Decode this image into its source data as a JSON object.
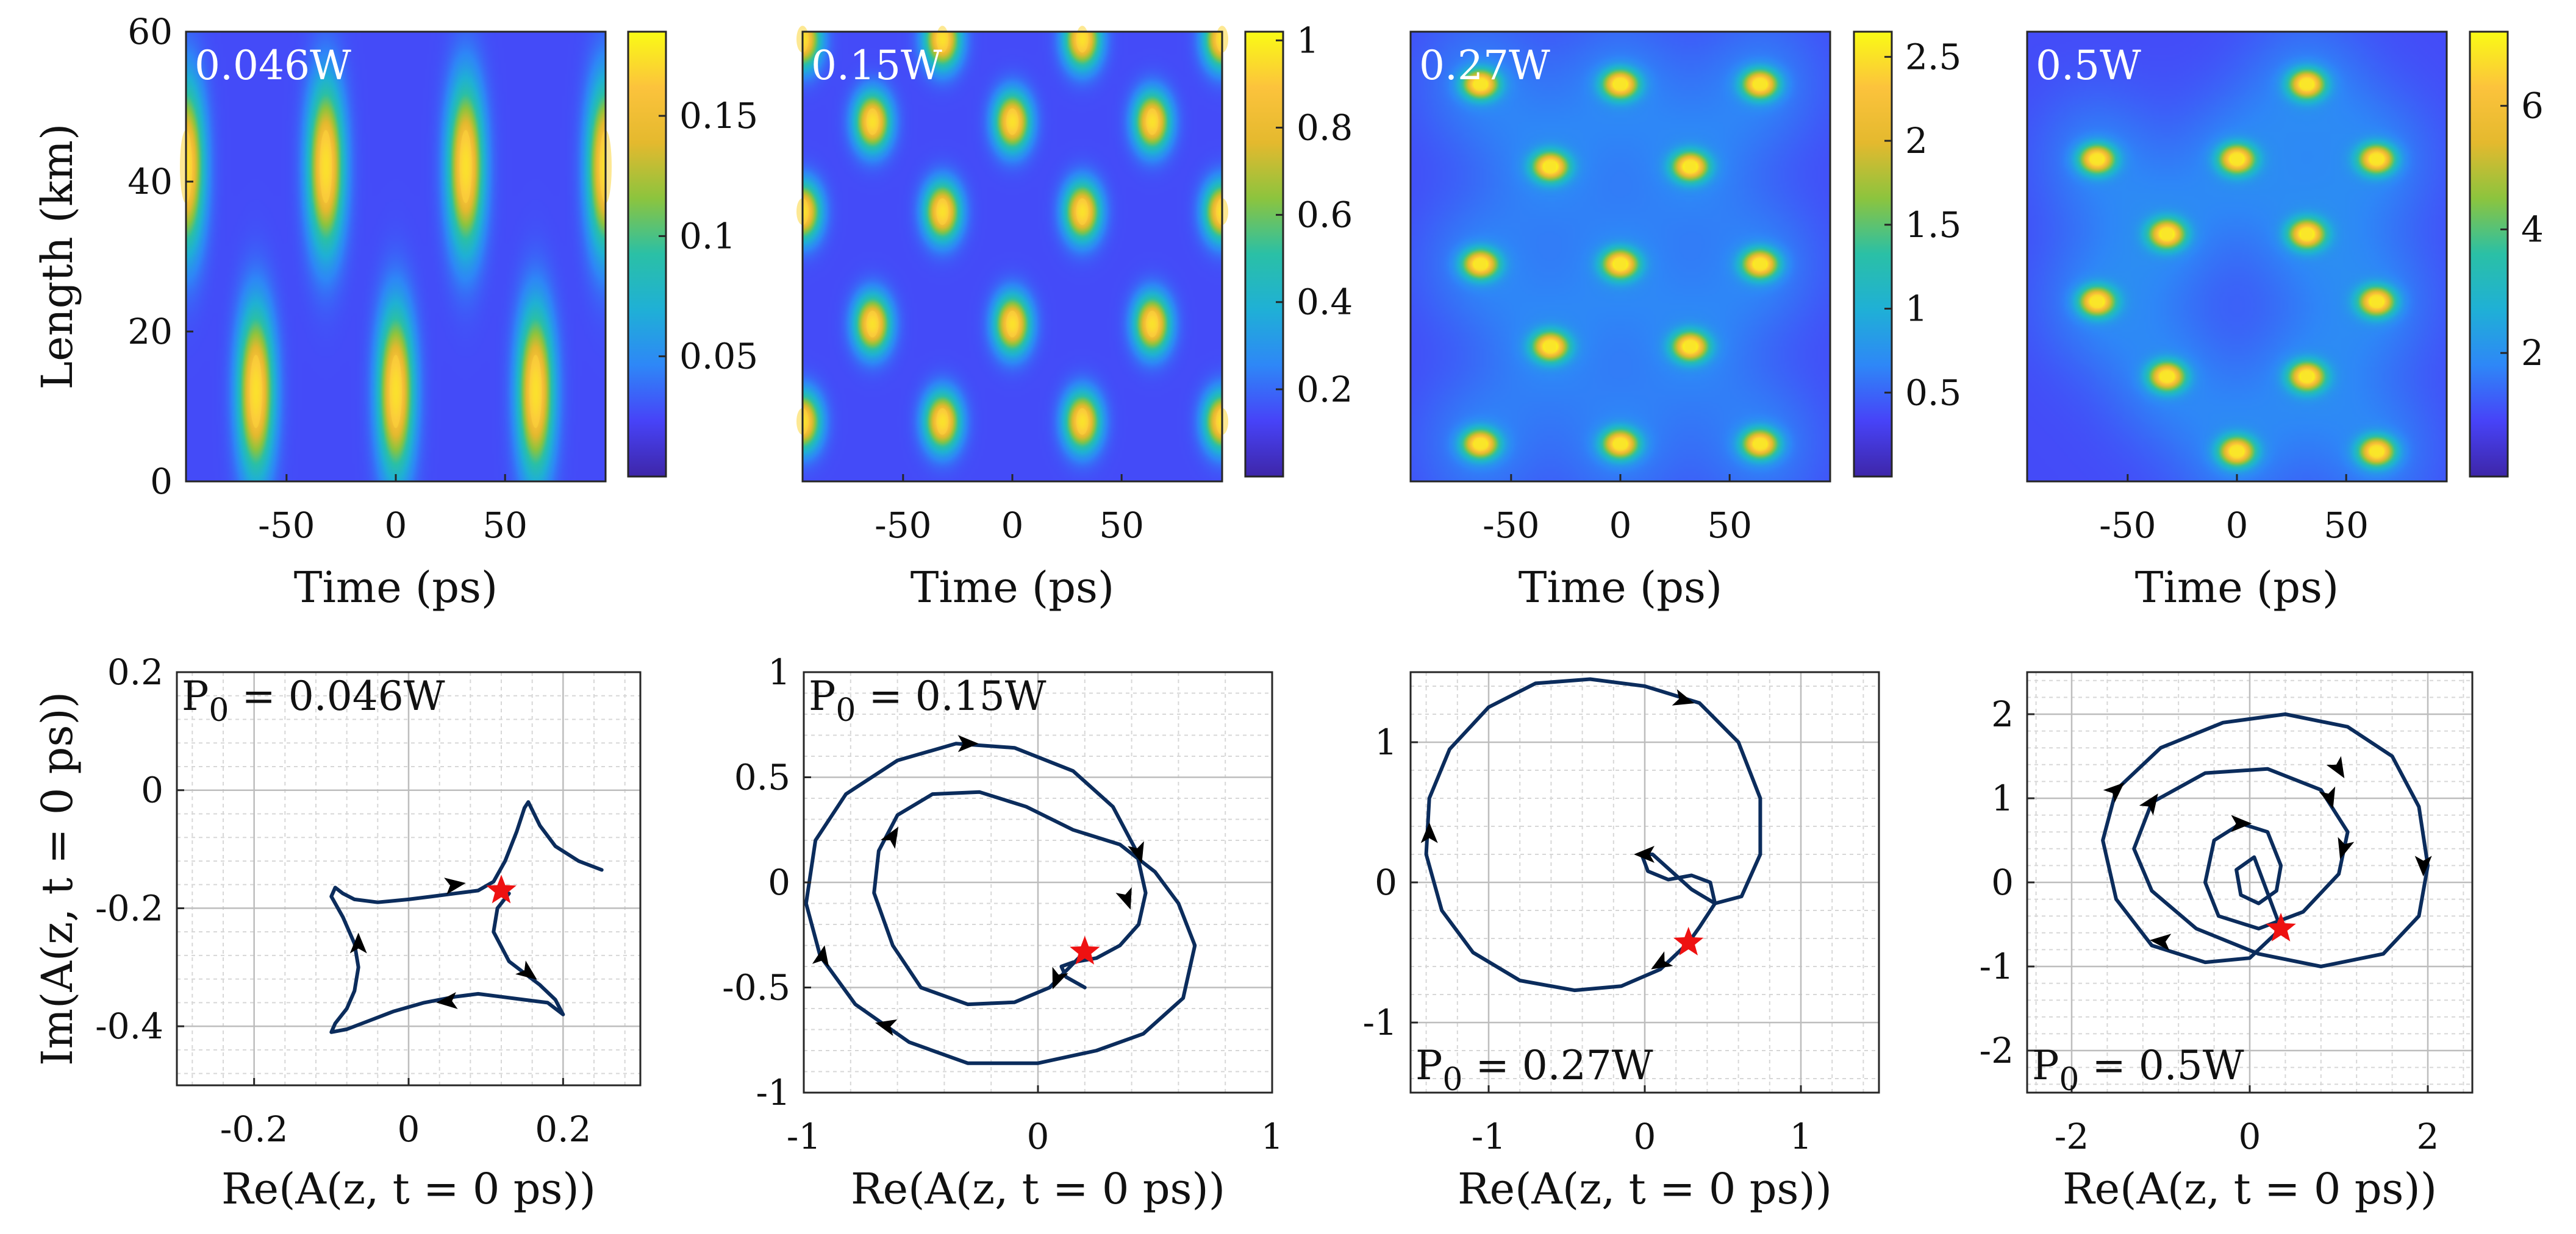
{
  "colormap": [
    "#3e26a8",
    "#4743f8",
    "#2e87f7",
    "#1fb0d6",
    "#2ac0a6",
    "#8cc43e",
    "#e4b92e",
    "#fcc33c",
    "#f9fb15"
  ],
  "trajectory_color": "#0b2c5c",
  "star_color": "#ee1111",
  "chart_data": [
    {
      "type": "heatmap",
      "id": "hm1",
      "label": "0.046W",
      "xlabel": "Time (ps)",
      "ylabel": "Length (km)",
      "xlim": [
        -96,
        96
      ],
      "ylim": [
        0,
        60
      ],
      "xticks": [
        -50,
        0,
        50
      ],
      "xtick_labels": [
        "-50",
        "0",
        "50"
      ],
      "yticks": [
        0,
        20,
        40,
        60
      ],
      "ytick_labels": [
        "0",
        "20",
        "40",
        "60"
      ],
      "colorbar_ticks": [
        0.05,
        0.1,
        0.15
      ],
      "colorbar_tick_labels": [
        "0.05",
        "0.1",
        "0.15"
      ],
      "clim": [
        0,
        0.185
      ],
      "peaks": [
        {
          "t": -96,
          "z": 42,
          "value": 0.18
        },
        {
          "t": -32,
          "z": 42,
          "value": 0.18
        },
        {
          "t": 32,
          "z": 42,
          "value": 0.18
        },
        {
          "t": 96,
          "z": 42,
          "value": 0.18
        },
        {
          "t": -64,
          "z": 12,
          "value": 0.18
        },
        {
          "t": 0,
          "z": 12,
          "value": 0.18
        },
        {
          "t": 64,
          "z": 12,
          "value": 0.18
        }
      ]
    },
    {
      "type": "heatmap",
      "id": "hm2",
      "label": "0.15W",
      "xlabel": "Time (ps)",
      "ylabel": "",
      "xlim": [
        -96,
        96
      ],
      "ylim": [
        0,
        60
      ],
      "xticks": [
        -50,
        0,
        50
      ],
      "xtick_labels": [
        "-50",
        "0",
        "50"
      ],
      "colorbar_ticks": [
        0.2,
        0.4,
        0.6,
        0.8,
        1
      ],
      "colorbar_tick_labels": [
        "0.2",
        "0.4",
        "0.6",
        "0.8",
        "1"
      ],
      "clim": [
        0,
        1.02
      ],
      "peaks": [
        {
          "t": -96,
          "z": 59,
          "value": 1.0
        },
        {
          "t": -32,
          "z": 59,
          "value": 1.0
        },
        {
          "t": 32,
          "z": 59,
          "value": 1.0
        },
        {
          "t": 96,
          "z": 59,
          "value": 1.0
        },
        {
          "t": -64,
          "z": 48,
          "value": 1.0
        },
        {
          "t": 0,
          "z": 48,
          "value": 1.0
        },
        {
          "t": 64,
          "z": 48,
          "value": 1.0
        },
        {
          "t": -96,
          "z": 36,
          "value": 1.0
        },
        {
          "t": -32,
          "z": 36,
          "value": 1.0
        },
        {
          "t": 32,
          "z": 36,
          "value": 1.0
        },
        {
          "t": 96,
          "z": 36,
          "value": 1.0
        },
        {
          "t": -64,
          "z": 21,
          "value": 1.0
        },
        {
          "t": 0,
          "z": 21,
          "value": 1.0
        },
        {
          "t": 64,
          "z": 21,
          "value": 1.0
        },
        {
          "t": -96,
          "z": 8,
          "value": 1.0
        },
        {
          "t": -32,
          "z": 8,
          "value": 1.0
        },
        {
          "t": 32,
          "z": 8,
          "value": 1.0
        },
        {
          "t": 96,
          "z": 8,
          "value": 1.0
        }
      ]
    },
    {
      "type": "heatmap",
      "id": "hm3",
      "label": "0.27W",
      "xlabel": "Time (ps)",
      "ylabel": "",
      "xlim": [
        -96,
        96
      ],
      "ylim": [
        0,
        60
      ],
      "xticks": [
        -50,
        0,
        50
      ],
      "xtick_labels": [
        "-50",
        "0",
        "50"
      ],
      "colorbar_ticks": [
        0.5,
        1,
        1.5,
        2,
        2.5
      ],
      "colorbar_tick_labels": [
        "0.5",
        "1",
        "1.5",
        "2",
        "2.5"
      ],
      "clim": [
        0,
        2.65
      ],
      "peaks": [
        {
          "t": -64,
          "z": 53,
          "value": 2.6
        },
        {
          "t": 0,
          "z": 53,
          "value": 2.6
        },
        {
          "t": 64,
          "z": 53,
          "value": 2.6
        },
        {
          "t": -32,
          "z": 42,
          "value": 2.6
        },
        {
          "t": 32,
          "z": 42,
          "value": 2.6
        },
        {
          "t": -64,
          "z": 29,
          "value": 2.6
        },
        {
          "t": 0,
          "z": 29,
          "value": 2.6
        },
        {
          "t": 64,
          "z": 29,
          "value": 2.6
        },
        {
          "t": -32,
          "z": 18,
          "value": 2.6
        },
        {
          "t": 32,
          "z": 18,
          "value": 2.6
        },
        {
          "t": -64,
          "z": 5,
          "value": 2.6
        },
        {
          "t": 0,
          "z": 5,
          "value": 2.6
        },
        {
          "t": 64,
          "z": 5,
          "value": 2.6
        }
      ]
    },
    {
      "type": "heatmap",
      "id": "hm4",
      "label": "0.5W",
      "xlabel": "Time (ps)",
      "ylabel": "",
      "xlim": [
        -96,
        96
      ],
      "ylim": [
        0,
        60
      ],
      "xticks": [
        -50,
        0,
        50
      ],
      "xtick_labels": [
        "-50",
        "0",
        "50"
      ],
      "colorbar_ticks": [
        2,
        4,
        6
      ],
      "colorbar_tick_labels": [
        "2",
        "4",
        "6"
      ],
      "clim": [
        0,
        7.2
      ],
      "peaks": [
        {
          "t": 32,
          "z": 53,
          "value": 7.0
        },
        {
          "t": -64,
          "z": 43,
          "value": 7.0
        },
        {
          "t": 0,
          "z": 43,
          "value": 7.0
        },
        {
          "t": 64,
          "z": 43,
          "value": 7.0
        },
        {
          "t": -32,
          "z": 33,
          "value": 7.0
        },
        {
          "t": 32,
          "z": 33,
          "value": 7.0
        },
        {
          "t": -64,
          "z": 24,
          "value": 7.0
        },
        {
          "t": 64,
          "z": 24,
          "value": 7.0
        },
        {
          "t": -32,
          "z": 14,
          "value": 7.0
        },
        {
          "t": 32,
          "z": 14,
          "value": 7.0
        },
        {
          "t": 0,
          "z": 4,
          "value": 7.0
        },
        {
          "t": 64,
          "z": 4,
          "value": 7.0
        }
      ]
    },
    {
      "type": "line",
      "id": "ph1",
      "label": "P_0 = 0.046W",
      "xlabel": "Re(A(z, t = 0 ps))",
      "ylabel": "Im(A(z, t = 0 ps))",
      "xlim": [
        -0.3,
        0.3
      ],
      "ylim": [
        -0.5,
        0.2
      ],
      "xticks": [
        -0.2,
        0,
        0.2
      ],
      "xtick_labels": [
        "-0.2",
        "0",
        "0.2"
      ],
      "yticks": [
        -0.4,
        -0.2,
        0,
        0.2
      ],
      "ytick_labels": [
        "-0.4",
        "-0.2",
        "0",
        "0.2"
      ],
      "label_position": "top-left",
      "x": [
        0.25,
        0.22,
        0.19,
        0.17,
        0.155,
        0.15,
        0.14,
        0.125,
        0.11,
        0.09,
        0.06,
        0.03,
        0.0,
        -0.04,
        -0.07,
        -0.085,
        -0.095,
        -0.1,
        -0.085,
        -0.07,
        -0.065,
        -0.07,
        -0.08,
        -0.095,
        -0.1,
        -0.08,
        -0.05,
        -0.02,
        0.02,
        0.06,
        0.09,
        0.12,
        0.15,
        0.18,
        0.2,
        0.19,
        0.17,
        0.15,
        0.13,
        0.11,
        0.115,
        0.13
      ],
      "y": [
        -0.135,
        -0.12,
        -0.095,
        -0.06,
        -0.02,
        -0.03,
        -0.07,
        -0.12,
        -0.155,
        -0.17,
        -0.175,
        -0.18,
        -0.185,
        -0.19,
        -0.185,
        -0.175,
        -0.165,
        -0.18,
        -0.215,
        -0.26,
        -0.3,
        -0.34,
        -0.37,
        -0.395,
        -0.41,
        -0.405,
        -0.39,
        -0.375,
        -0.36,
        -0.35,
        -0.345,
        -0.35,
        -0.355,
        -0.36,
        -0.38,
        -0.355,
        -0.33,
        -0.31,
        -0.29,
        -0.24,
        -0.2,
        -0.175
      ],
      "arrows": [
        {
          "x": 0.06,
          "y": -0.16,
          "dx": 1,
          "dy": 0.15
        },
        {
          "x": 0.155,
          "y": -0.31,
          "dx": 0.8,
          "dy": -0.6
        },
        {
          "x": 0.05,
          "y": -0.358,
          "dx": -1,
          "dy": -0.1
        },
        {
          "x": -0.065,
          "y": -0.26,
          "dx": 0,
          "dy": 1
        }
      ],
      "star": {
        "x": 0.12,
        "y": -0.17
      }
    },
    {
      "type": "line",
      "id": "ph2",
      "label": "P_0 = 0.15W",
      "xlabel": "Re(A(z, t = 0 ps))",
      "ylabel": "",
      "xlim": [
        -1,
        1
      ],
      "ylim": [
        -1,
        1
      ],
      "xticks": [
        -1,
        0,
        1
      ],
      "xtick_labels": [
        "-1",
        "0",
        "1"
      ],
      "yticks": [
        -1,
        -0.5,
        0,
        0.5,
        1
      ],
      "ytick_labels": [
        "-1",
        "-0.5",
        "0",
        "0.5",
        "1"
      ],
      "label_position": "top-left",
      "x": [
        0.2,
        0.05,
        -0.1,
        -0.3,
        -0.5,
        -0.62,
        -0.7,
        -0.68,
        -0.6,
        -0.45,
        -0.25,
        -0.05,
        0.15,
        0.35,
        0.5,
        0.6,
        0.67,
        0.62,
        0.45,
        0.25,
        0.0,
        -0.3,
        -0.55,
        -0.78,
        -0.93,
        -0.99,
        -0.95,
        -0.82,
        -0.6,
        -0.35,
        -0.1,
        0.15,
        0.32,
        0.42,
        0.46,
        0.43,
        0.35,
        0.25,
        0.15,
        0.1,
        0.12,
        0.2
      ],
      "y": [
        -0.33,
        -0.5,
        -0.57,
        -0.58,
        -0.5,
        -0.3,
        -0.05,
        0.15,
        0.32,
        0.42,
        0.43,
        0.36,
        0.25,
        0.18,
        0.05,
        -0.1,
        -0.3,
        -0.55,
        -0.72,
        -0.8,
        -0.86,
        -0.86,
        -0.76,
        -0.58,
        -0.35,
        -0.1,
        0.2,
        0.42,
        0.58,
        0.66,
        0.64,
        0.53,
        0.36,
        0.15,
        -0.05,
        -0.2,
        -0.3,
        -0.36,
        -0.38,
        -0.4,
        -0.45,
        -0.5
      ],
      "arrows": [
        {
          "x": -0.62,
          "y": 0.22,
          "dx": 0.6,
          "dy": 1
        },
        {
          "x": 0.38,
          "y": -0.08,
          "dx": 0.35,
          "dy": -1
        },
        {
          "x": -0.65,
          "y": -0.68,
          "dx": -1,
          "dy": 0.25
        },
        {
          "x": -0.92,
          "y": -0.35,
          "dx": 0.2,
          "dy": 1
        },
        {
          "x": -0.3,
          "y": 0.66,
          "dx": 1,
          "dy": 0
        },
        {
          "x": 0.43,
          "y": 0.14,
          "dx": 0.3,
          "dy": -1
        },
        {
          "x": 0.08,
          "y": -0.46,
          "dx": -0.4,
          "dy": -1
        }
      ],
      "star": {
        "x": 0.2,
        "y": -0.33
      }
    },
    {
      "type": "line",
      "id": "ph3",
      "label": "P_0 = 0.27W",
      "xlabel": "Re(A(z, t = 0 ps))",
      "ylabel": "",
      "xlim": [
        -1.5,
        1.5
      ],
      "ylim": [
        -1.5,
        1.5
      ],
      "xticks": [
        -1,
        0,
        1
      ],
      "xtick_labels": [
        "-1",
        "0",
        "1"
      ],
      "yticks": [
        -1,
        0,
        1
      ],
      "ytick_labels": [
        "-1",
        "0",
        "1"
      ],
      "label_position": "bottom-left",
      "x": [
        0.28,
        0.1,
        -0.15,
        -0.45,
        -0.8,
        -1.1,
        -1.3,
        -1.4,
        -1.38,
        -1.25,
        -1.0,
        -0.7,
        -0.35,
        0.0,
        0.35,
        0.6,
        0.74,
        0.74,
        0.62,
        0.45,
        0.3,
        0.15,
        0.05,
        -0.02,
        0.02,
        0.15,
        0.3,
        0.42,
        0.45,
        0.35,
        0.28
      ],
      "y": [
        -0.43,
        -0.62,
        -0.74,
        -0.77,
        -0.7,
        -0.5,
        -0.2,
        0.2,
        0.6,
        0.95,
        1.25,
        1.42,
        1.45,
        1.4,
        1.28,
        1.0,
        0.6,
        0.2,
        -0.1,
        -0.15,
        -0.05,
        0.1,
        0.2,
        0.2,
        0.08,
        0.02,
        0.05,
        0.0,
        -0.15,
        -0.32,
        -0.43
      ],
      "arrows": [
        {
          "x": -1.38,
          "y": 0.35,
          "dx": 0,
          "dy": 1
        },
        {
          "x": 0.25,
          "y": 1.3,
          "dx": 1,
          "dy": -0.3
        },
        {
          "x": 0.1,
          "y": -0.58,
          "dx": -1,
          "dy": -0.6
        },
        {
          "x": 0.0,
          "y": 0.2,
          "dx": -1,
          "dy": 0
        }
      ],
      "star": {
        "x": 0.28,
        "y": -0.43
      }
    },
    {
      "type": "line",
      "id": "ph4",
      "label": "P_0 = 0.5W",
      "xlabel": "Re(A(z, t = 0 ps))",
      "ylabel": "",
      "xlim": [
        -2.5,
        2.5
      ],
      "ylim": [
        -2.5,
        2.5
      ],
      "xticks": [
        -2,
        0,
        2
      ],
      "xtick_labels": [
        "-2",
        "0",
        "2"
      ],
      "yticks": [
        -2,
        -1,
        0,
        1,
        2
      ],
      "ytick_labels": [
        "-2",
        "-1",
        "0",
        "1",
        "2"
      ],
      "label_position": "bottom-left",
      "x": [
        0.35,
        0.0,
        -0.5,
        -1.1,
        -1.5,
        -1.65,
        -1.5,
        -1.0,
        -0.3,
        0.4,
        1.1,
        1.6,
        1.9,
        2.0,
        1.9,
        1.5,
        0.8,
        0.1,
        -0.6,
        -1.1,
        -1.3,
        -1.1,
        -0.5,
        0.2,
        0.8,
        1.1,
        1.0,
        0.6,
        0.1,
        -0.35,
        -0.5,
        -0.4,
        -0.1,
        0.2,
        0.35,
        0.3,
        0.1,
        -0.1,
        -0.15,
        0.05,
        0.35
      ],
      "y": [
        -0.55,
        -0.9,
        -0.95,
        -0.75,
        -0.2,
        0.5,
        1.1,
        1.6,
        1.9,
        2.0,
        1.85,
        1.5,
        0.9,
        0.2,
        -0.4,
        -0.85,
        -1.0,
        -0.85,
        -0.55,
        -0.1,
        0.4,
        0.95,
        1.3,
        1.35,
        1.1,
        0.6,
        0.1,
        -0.35,
        -0.55,
        -0.4,
        0.0,
        0.5,
        0.7,
        0.6,
        0.2,
        -0.1,
        -0.25,
        -0.15,
        0.15,
        0.3,
        -0.55
      ],
      "arrows": [
        {
          "x": -1.5,
          "y": 1.1,
          "dx": 1,
          "dy": 0.9
        },
        {
          "x": 1.0,
          "y": 1.35,
          "dx": 0.6,
          "dy": -1
        },
        {
          "x": 1.95,
          "y": 0.2,
          "dx": 0,
          "dy": -1
        },
        {
          "x": -1.0,
          "y": -0.7,
          "dx": -1,
          "dy": 0.1
        },
        {
          "x": -1.1,
          "y": 0.95,
          "dx": 0.7,
          "dy": 1
        },
        {
          "x": 0.9,
          "y": 1.0,
          "dx": 0.3,
          "dy": -1
        },
        {
          "x": 1.05,
          "y": 0.4,
          "dx": -0.3,
          "dy": -1
        },
        {
          "x": -0.1,
          "y": 0.7,
          "dx": 1,
          "dy": 0
        }
      ],
      "star": {
        "x": 0.35,
        "y": -0.55
      }
    }
  ]
}
